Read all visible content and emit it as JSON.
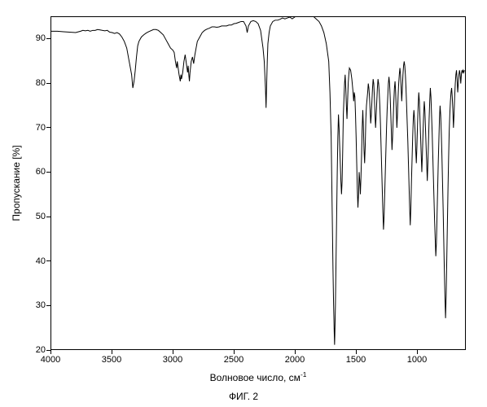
{
  "chart": {
    "type": "line",
    "title": "",
    "xlabel": "Волновое число, см",
    "xlabel_sup": "-1",
    "ylabel": "Пропускание [%]",
    "xlim": [
      4000,
      600
    ],
    "ylim": [
      20,
      95
    ],
    "xtick_step": 500,
    "ytick_step": 10,
    "xticks": [
      4000,
      3500,
      3000,
      2500,
      2000,
      1500,
      1000
    ],
    "yticks": [
      20,
      30,
      40,
      50,
      60,
      70,
      80,
      90
    ],
    "line_color": "#000000",
    "line_width": 1,
    "background_color": "#ffffff",
    "border_color": "#000000",
    "font_size_ticks": 11,
    "font_size_labels": 12,
    "caption": "ФИГ. 2",
    "data": [
      [
        4000,
        91.8
      ],
      [
        3950,
        91.8
      ],
      [
        3900,
        91.7
      ],
      [
        3850,
        91.6
      ],
      [
        3800,
        91.5
      ],
      [
        3760,
        91.8
      ],
      [
        3740,
        92.0
      ],
      [
        3720,
        91.9
      ],
      [
        3700,
        92.0
      ],
      [
        3680,
        91.8
      ],
      [
        3660,
        92.0
      ],
      [
        3640,
        92.0
      ],
      [
        3620,
        92.2
      ],
      [
        3600,
        92.1
      ],
      [
        3560,
        91.9
      ],
      [
        3540,
        92.0
      ],
      [
        3520,
        91.6
      ],
      [
        3500,
        91.5
      ],
      [
        3480,
        91.3
      ],
      [
        3460,
        91.5
      ],
      [
        3440,
        91.2
      ],
      [
        3420,
        90.5
      ],
      [
        3400,
        89.5
      ],
      [
        3380,
        88.0
      ],
      [
        3360,
        85.0
      ],
      [
        3340,
        82.0
      ],
      [
        3330,
        79.0
      ],
      [
        3320,
        80.5
      ],
      [
        3310,
        83.0
      ],
      [
        3300,
        86.0
      ],
      [
        3290,
        88.5
      ],
      [
        3280,
        89.5
      ],
      [
        3260,
        90.5
      ],
      [
        3240,
        91.0
      ],
      [
        3220,
        91.4
      ],
      [
        3200,
        91.7
      ],
      [
        3160,
        92.2
      ],
      [
        3140,
        92.2
      ],
      [
        3120,
        92.0
      ],
      [
        3100,
        91.5
      ],
      [
        3080,
        91.0
      ],
      [
        3060,
        90.0
      ],
      [
        3040,
        89.0
      ],
      [
        3020,
        88.0
      ],
      [
        3000,
        87.5
      ],
      [
        2990,
        87.0
      ],
      [
        2980,
        85.0
      ],
      [
        2970,
        83.5
      ],
      [
        2965,
        85.0
      ],
      [
        2960,
        84.0
      ],
      [
        2950,
        82.0
      ],
      [
        2940,
        80.5
      ],
      [
        2935,
        82.0
      ],
      [
        2930,
        81.0
      ],
      [
        2920,
        82.5
      ],
      [
        2910,
        85.0
      ],
      [
        2900,
        86.5
      ],
      [
        2890,
        84.5
      ],
      [
        2880,
        82.5
      ],
      [
        2875,
        84.0
      ],
      [
        2870,
        82.0
      ],
      [
        2865,
        80.5
      ],
      [
        2860,
        82.5
      ],
      [
        2850,
        85.0
      ],
      [
        2840,
        86.0
      ],
      [
        2830,
        84.5
      ],
      [
        2820,
        86.5
      ],
      [
        2810,
        88.0
      ],
      [
        2800,
        89.5
      ],
      [
        2780,
        90.5
      ],
      [
        2760,
        91.5
      ],
      [
        2740,
        92.0
      ],
      [
        2720,
        92.3
      ],
      [
        2700,
        92.5
      ],
      [
        2680,
        92.8
      ],
      [
        2660,
        92.8
      ],
      [
        2640,
        92.7
      ],
      [
        2620,
        92.8
      ],
      [
        2600,
        93.0
      ],
      [
        2580,
        93.0
      ],
      [
        2560,
        93.0
      ],
      [
        2540,
        93.2
      ],
      [
        2520,
        93.2
      ],
      [
        2500,
        93.5
      ],
      [
        2480,
        93.6
      ],
      [
        2460,
        93.8
      ],
      [
        2440,
        94.0
      ],
      [
        2420,
        94.0
      ],
      [
        2400,
        93.0
      ],
      [
        2390,
        91.5
      ],
      [
        2380,
        93.0
      ],
      [
        2360,
        94.0
      ],
      [
        2340,
        94.2
      ],
      [
        2320,
        94.0
      ],
      [
        2300,
        93.5
      ],
      [
        2280,
        92.0
      ],
      [
        2270,
        90.0
      ],
      [
        2260,
        88.0
      ],
      [
        2250,
        85.0
      ],
      [
        2240,
        79.0
      ],
      [
        2235,
        74.5
      ],
      [
        2230,
        80.0
      ],
      [
        2225,
        85.0
      ],
      [
        2220,
        89.0
      ],
      [
        2210,
        91.5
      ],
      [
        2200,
        93.0
      ],
      [
        2180,
        94.0
      ],
      [
        2160,
        94.3
      ],
      [
        2140,
        94.3
      ],
      [
        2120,
        94.5
      ],
      [
        2100,
        94.8
      ],
      [
        2080,
        94.6
      ],
      [
        2060,
        94.8
      ],
      [
        2040,
        95.0
      ],
      [
        2020,
        94.6
      ],
      [
        2000,
        95.0
      ],
      [
        1990,
        95.2
      ],
      [
        1980,
        96.0
      ],
      [
        1970,
        95.5
      ],
      [
        1960,
        96.2
      ],
      [
        1950,
        96.0
      ],
      [
        1940,
        95.8
      ],
      [
        1930,
        96.5
      ],
      [
        1920,
        96.0
      ],
      [
        1905,
        97.0
      ],
      [
        1900,
        96.5
      ],
      [
        1880,
        96.0
      ],
      [
        1860,
        95.5
      ],
      [
        1840,
        95.0
      ],
      [
        1820,
        94.5
      ],
      [
        1800,
        94.0
      ],
      [
        1780,
        93.0
      ],
      [
        1760,
        91.5
      ],
      [
        1740,
        89.0
      ],
      [
        1720,
        85.0
      ],
      [
        1710,
        78.0
      ],
      [
        1700,
        68.0
      ],
      [
        1695,
        58.0
      ],
      [
        1690,
        48.0
      ],
      [
        1685,
        38.0
      ],
      [
        1680,
        30.0
      ],
      [
        1675,
        24.0
      ],
      [
        1672,
        21.0
      ],
      [
        1670,
        23.0
      ],
      [
        1665,
        30.0
      ],
      [
        1660,
        40.0
      ],
      [
        1655,
        50.0
      ],
      [
        1650,
        60.0
      ],
      [
        1645,
        68.0
      ],
      [
        1640,
        73.0
      ],
      [
        1635,
        70.0
      ],
      [
        1630,
        66.0
      ],
      [
        1625,
        62.0
      ],
      [
        1620,
        58.0
      ],
      [
        1615,
        55.0
      ],
      [
        1610,
        58.0
      ],
      [
        1605,
        65.0
      ],
      [
        1600,
        73.0
      ],
      [
        1590,
        80.0
      ],
      [
        1585,
        82.0
      ],
      [
        1580,
        79.0
      ],
      [
        1575,
        75.0
      ],
      [
        1570,
        72.0
      ],
      [
        1565,
        76.0
      ],
      [
        1560,
        80.0
      ],
      [
        1555,
        82.0
      ],
      [
        1550,
        83.5
      ],
      [
        1540,
        83.0
      ],
      [
        1530,
        81.0
      ],
      [
        1520,
        78.0
      ],
      [
        1515,
        76.0
      ],
      [
        1510,
        78.0
      ],
      [
        1505,
        77.0
      ],
      [
        1500,
        73.0
      ],
      [
        1495,
        68.0
      ],
      [
        1490,
        62.0
      ],
      [
        1485,
        56.0
      ],
      [
        1480,
        52.0
      ],
      [
        1475,
        55.0
      ],
      [
        1470,
        60.0
      ],
      [
        1465,
        58.0
      ],
      [
        1460,
        55.0
      ],
      [
        1455,
        59.0
      ],
      [
        1450,
        64.0
      ],
      [
        1445,
        70.0
      ],
      [
        1440,
        74.0
      ],
      [
        1435,
        70.0
      ],
      [
        1430,
        65.0
      ],
      [
        1425,
        62.0
      ],
      [
        1420,
        66.0
      ],
      [
        1415,
        72.0
      ],
      [
        1410,
        75.0
      ],
      [
        1400,
        78.0
      ],
      [
        1395,
        80.0
      ],
      [
        1390,
        79.0
      ],
      [
        1385,
        77.0
      ],
      [
        1380,
        74.0
      ],
      [
        1375,
        71.0
      ],
      [
        1370,
        73.0
      ],
      [
        1365,
        76.0
      ],
      [
        1360,
        79.0
      ],
      [
        1355,
        81.0
      ],
      [
        1350,
        80.0
      ],
      [
        1345,
        77.0
      ],
      [
        1340,
        73.0
      ],
      [
        1335,
        70.0
      ],
      [
        1330,
        73.0
      ],
      [
        1325,
        76.0
      ],
      [
        1320,
        79.0
      ],
      [
        1315,
        81.0
      ],
      [
        1310,
        80.0
      ],
      [
        1305,
        78.0
      ],
      [
        1300,
        75.0
      ],
      [
        1295,
        71.0
      ],
      [
        1290,
        66.0
      ],
      [
        1285,
        61.0
      ],
      [
        1280,
        56.0
      ],
      [
        1275,
        51.0
      ],
      [
        1270,
        47.0
      ],
      [
        1265,
        50.0
      ],
      [
        1260,
        55.0
      ],
      [
        1255,
        60.0
      ],
      [
        1250,
        65.0
      ],
      [
        1245,
        70.0
      ],
      [
        1240,
        74.0
      ],
      [
        1235,
        77.0
      ],
      [
        1230,
        80.0
      ],
      [
        1225,
        81.5
      ],
      [
        1220,
        80.0
      ],
      [
        1215,
        77.0
      ],
      [
        1210,
        73.0
      ],
      [
        1205,
        69.0
      ],
      [
        1200,
        65.0
      ],
      [
        1195,
        68.0
      ],
      [
        1190,
        72.0
      ],
      [
        1185,
        76.0
      ],
      [
        1180,
        79.0
      ],
      [
        1175,
        80.5
      ],
      [
        1170,
        78.0
      ],
      [
        1165,
        74.0
      ],
      [
        1160,
        70.0
      ],
      [
        1155,
        73.0
      ],
      [
        1150,
        77.0
      ],
      [
        1145,
        80.0
      ],
      [
        1140,
        82.0
      ],
      [
        1135,
        83.5
      ],
      [
        1130,
        82.0
      ],
      [
        1125,
        79.0
      ],
      [
        1120,
        76.0
      ],
      [
        1115,
        79.0
      ],
      [
        1110,
        82.0
      ],
      [
        1105,
        84.0
      ],
      [
        1100,
        85.0
      ],
      [
        1095,
        84.0
      ],
      [
        1090,
        82.0
      ],
      [
        1085,
        79.0
      ],
      [
        1080,
        75.0
      ],
      [
        1075,
        71.0
      ],
      [
        1070,
        67.0
      ],
      [
        1065,
        62.0
      ],
      [
        1060,
        57.0
      ],
      [
        1055,
        52.0
      ],
      [
        1050,
        48.0
      ],
      [
        1045,
        52.0
      ],
      [
        1040,
        58.0
      ],
      [
        1035,
        63.0
      ],
      [
        1030,
        68.0
      ],
      [
        1025,
        72.0
      ],
      [
        1020,
        74.0
      ],
      [
        1015,
        72.0
      ],
      [
        1010,
        69.0
      ],
      [
        1005,
        65.0
      ],
      [
        1000,
        62.0
      ],
      [
        995,
        66.0
      ],
      [
        990,
        71.0
      ],
      [
        985,
        75.0
      ],
      [
        980,
        78.0
      ],
      [
        975,
        76.0
      ],
      [
        970,
        72.0
      ],
      [
        965,
        68.0
      ],
      [
        960,
        64.0
      ],
      [
        955,
        60.0
      ],
      [
        950,
        64.0
      ],
      [
        945,
        69.0
      ],
      [
        940,
        73.0
      ],
      [
        935,
        76.0
      ],
      [
        930,
        74.0
      ],
      [
        925,
        70.0
      ],
      [
        920,
        66.0
      ],
      [
        915,
        62.0
      ],
      [
        910,
        58.0
      ],
      [
        905,
        62.0
      ],
      [
        900,
        67.0
      ],
      [
        895,
        72.0
      ],
      [
        890,
        76.0
      ],
      [
        885,
        79.0
      ],
      [
        880,
        77.0
      ],
      [
        875,
        73.0
      ],
      [
        870,
        69.0
      ],
      [
        865,
        64.0
      ],
      [
        860,
        59.0
      ],
      [
        855,
        54.0
      ],
      [
        850,
        49.0
      ],
      [
        845,
        45.0
      ],
      [
        840,
        41.0
      ],
      [
        835,
        44.0
      ],
      [
        830,
        50.0
      ],
      [
        825,
        56.0
      ],
      [
        820,
        62.0
      ],
      [
        815,
        67.0
      ],
      [
        810,
        72.0
      ],
      [
        805,
        75.0
      ],
      [
        800,
        73.0
      ],
      [
        795,
        69.0
      ],
      [
        790,
        64.0
      ],
      [
        785,
        58.0
      ],
      [
        780,
        52.0
      ],
      [
        775,
        45.0
      ],
      [
        770,
        38.0
      ],
      [
        765,
        32.0
      ],
      [
        760,
        27.0
      ],
      [
        755,
        32.0
      ],
      [
        750,
        40.0
      ],
      [
        745,
        48.0
      ],
      [
        740,
        56.0
      ],
      [
        735,
        63.0
      ],
      [
        730,
        69.0
      ],
      [
        725,
        73.0
      ],
      [
        720,
        76.0
      ],
      [
        715,
        78.0
      ],
      [
        710,
        79.0
      ],
      [
        705,
        77.0
      ],
      [
        700,
        74.0
      ],
      [
        695,
        70.0
      ],
      [
        690,
        73.0
      ],
      [
        685,
        77.0
      ],
      [
        680,
        80.0
      ],
      [
        675,
        82.0
      ],
      [
        670,
        83.0
      ],
      [
        665,
        81.0
      ],
      [
        660,
        78.0
      ],
      [
        655,
        80.0
      ],
      [
        650,
        82.0
      ],
      [
        645,
        83.0
      ],
      [
        640,
        82.0
      ],
      [
        635,
        80.0
      ],
      [
        630,
        82.0
      ],
      [
        625,
        83.0
      ],
      [
        620,
        82.5
      ],
      [
        615,
        83.0
      ],
      [
        610,
        82.5
      ],
      [
        605,
        83.0
      ]
    ]
  }
}
